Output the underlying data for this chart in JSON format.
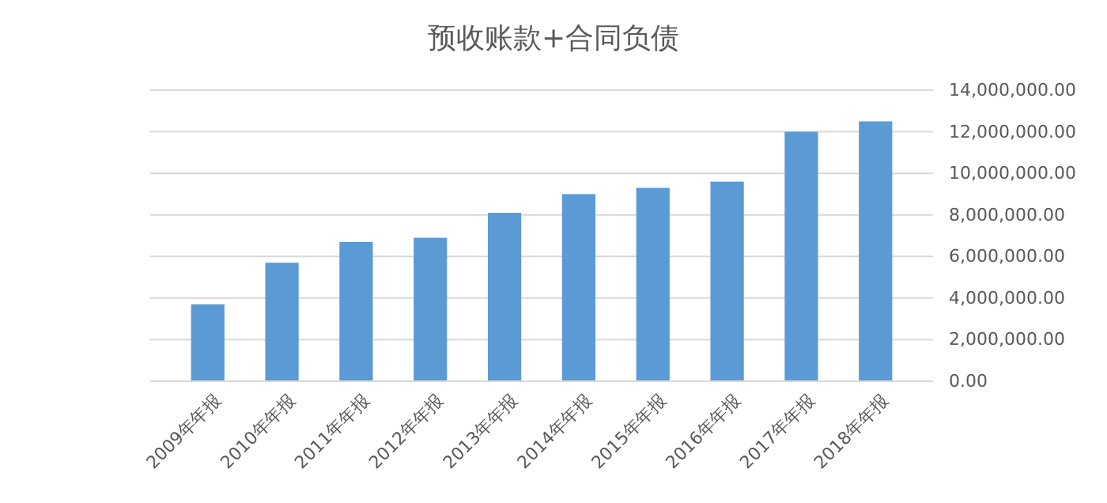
{
  "chart_data": {
    "type": "bar",
    "title": "预收账款+合同负债",
    "categories": [
      "2009年年报",
      "2010年年报",
      "2011年年报",
      "2012年年报",
      "2013年年报",
      "2014年年报",
      "2015年年报",
      "2016年年报",
      "2017年年报",
      "2018年年报"
    ],
    "values": [
      3700000,
      5700000,
      6700000,
      6900000,
      8100000,
      9000000,
      9300000,
      9600000,
      12000000,
      12500000
    ],
    "color": "#5b9bd5",
    "ylim": [
      0,
      14000000
    ],
    "yticks": [
      {
        "value": 0,
        "label": "0.00"
      },
      {
        "value": 2000000,
        "label": "2,000,000.00"
      },
      {
        "value": 4000000,
        "label": "4,000,000.00"
      },
      {
        "value": 6000000,
        "label": "6,000,000.00"
      },
      {
        "value": 8000000,
        "label": "8,000,000.00"
      },
      {
        "value": 10000000,
        "label": "10,000,000.00"
      },
      {
        "value": 12000000,
        "label": "12,000,000.00"
      },
      {
        "value": 14000000,
        "label": "14,000,000.00"
      }
    ],
    "grid": "y"
  }
}
